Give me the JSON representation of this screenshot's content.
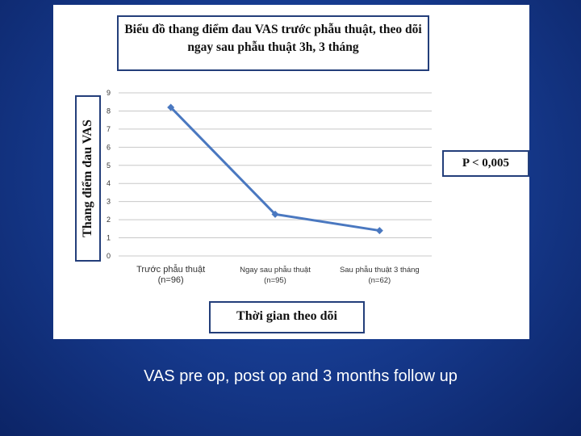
{
  "chart_data": {
    "type": "line",
    "title": "Biểu đồ thang điểm đau VAS trước phẫu thuật, theo dõi ngay sau phẫu thuật 3h, 3 tháng",
    "ylabel": "Thang điểm đau VAS",
    "xlabel": "Thời gian theo dõi",
    "categories": [
      "Trước phẫu thuật (n=96)",
      "Ngay sau phẫu thuật (n=95)",
      "Sau phẫu thuật 3 tháng (n=62)"
    ],
    "values": [
      8.2,
      2.3,
      1.4
    ],
    "ylim": [
      0,
      9
    ],
    "yticks": [
      "0",
      "1",
      "2",
      "3",
      "4",
      "5",
      "6",
      "7",
      "8",
      "9"
    ],
    "grid": true,
    "annotation": "P < 0,005",
    "series_color": "#4a78c0"
  },
  "caption": "VAS pre op, post op and 3 months follow up"
}
